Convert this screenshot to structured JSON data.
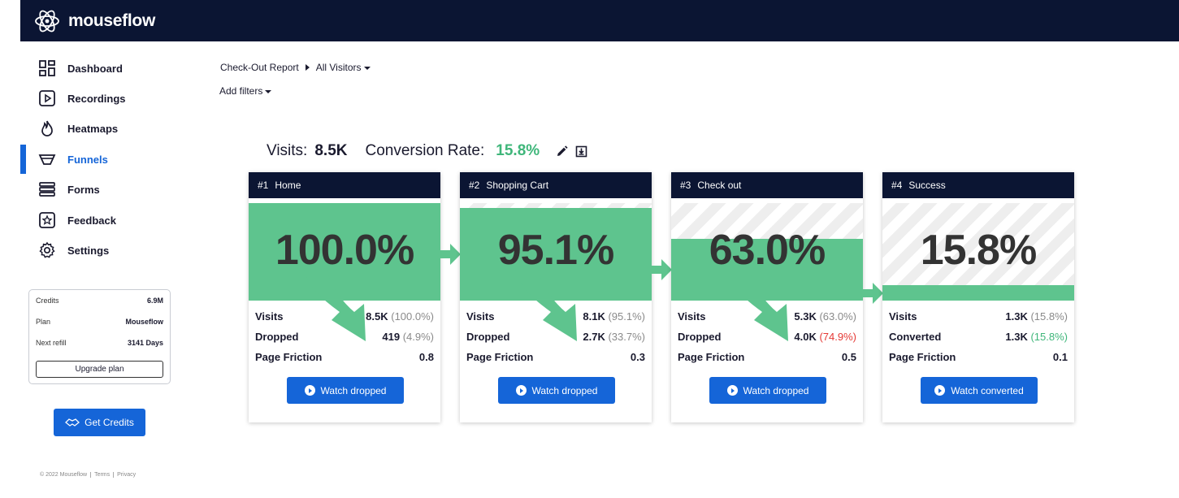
{
  "app": {
    "name": "mouseflow"
  },
  "sidebar": {
    "items": [
      {
        "label": "Dashboard",
        "icon": "dashboard-icon",
        "active": false
      },
      {
        "label": "Recordings",
        "icon": "play-icon",
        "active": false
      },
      {
        "label": "Heatmaps",
        "icon": "flame-icon",
        "active": false
      },
      {
        "label": "Funnels",
        "icon": "funnel-icon",
        "active": true
      },
      {
        "label": "Forms",
        "icon": "forms-icon",
        "active": false
      },
      {
        "label": "Feedback",
        "icon": "feedback-icon",
        "active": false
      },
      {
        "label": "Settings",
        "icon": "gear-icon",
        "active": false
      }
    ],
    "credits": {
      "credits_label": "Credits",
      "credits_value": "6.9M",
      "plan_label": "Plan",
      "plan_value": "Mouseflow",
      "refill_label": "Next refill",
      "refill_value": "3141 Days",
      "upgrade_label": "Upgrade plan"
    },
    "get_credits_label": "Get Credits",
    "footer": {
      "copyright": "© 2022 Mouseflow",
      "terms": "Terms",
      "privacy": "Privacy"
    }
  },
  "header": {
    "breadcrumb_report": "Check-Out Report",
    "breadcrumb_segment": "All Visitors",
    "add_filters": "Add filters"
  },
  "summary": {
    "visits_label": "Visits:",
    "visits_value": "8.5K",
    "rate_label": "Conversion Rate:",
    "rate_value": "15.8%"
  },
  "colors": {
    "accent": "#1565d8",
    "header": "#0b1533",
    "fill": "#5ec48e",
    "positive": "#3fb67a",
    "negative": "#e53935"
  },
  "funnel": [
    {
      "num": "#1",
      "title": "Home",
      "percent": "100.0%",
      "level": 1.0,
      "arrow": true,
      "stats": [
        {
          "label": "Visits",
          "value": "8.5K",
          "pct": "(100.0%)",
          "tone": "gray"
        },
        {
          "label": "Dropped",
          "value": "419",
          "pct": "(4.9%)",
          "tone": "gray"
        },
        {
          "label": "Page Friction",
          "value": "0.8",
          "pct": "",
          "tone": "gray"
        }
      ],
      "button": "Watch dropped"
    },
    {
      "num": "#2",
      "title": "Shopping Cart",
      "percent": "95.1%",
      "level": 0.951,
      "arrow": true,
      "stats": [
        {
          "label": "Visits",
          "value": "8.1K",
          "pct": "(95.1%)",
          "tone": "gray"
        },
        {
          "label": "Dropped",
          "value": "2.7K",
          "pct": "(33.7%)",
          "tone": "gray"
        },
        {
          "label": "Page Friction",
          "value": "0.3",
          "pct": "",
          "tone": "gray"
        }
      ],
      "button": "Watch dropped"
    },
    {
      "num": "#3",
      "title": "Check out",
      "percent": "63.0%",
      "level": 0.63,
      "arrow": true,
      "stats": [
        {
          "label": "Visits",
          "value": "5.3K",
          "pct": "(63.0%)",
          "tone": "gray"
        },
        {
          "label": "Dropped",
          "value": "4.0K",
          "pct": "(74.9%)",
          "tone": "red"
        },
        {
          "label": "Page Friction",
          "value": "0.5",
          "pct": "",
          "tone": "gray"
        }
      ],
      "button": "Watch dropped"
    },
    {
      "num": "#4",
      "title": "Success",
      "percent": "15.8%",
      "level": 0.158,
      "arrow": false,
      "stats": [
        {
          "label": "Visits",
          "value": "1.3K",
          "pct": "(15.8%)",
          "tone": "gray"
        },
        {
          "label": "Converted",
          "value": "1.3K",
          "pct": "(15.8%)",
          "tone": "green"
        },
        {
          "label": "Page Friction",
          "value": "0.1",
          "pct": "",
          "tone": "gray"
        }
      ],
      "button": "Watch converted"
    }
  ]
}
